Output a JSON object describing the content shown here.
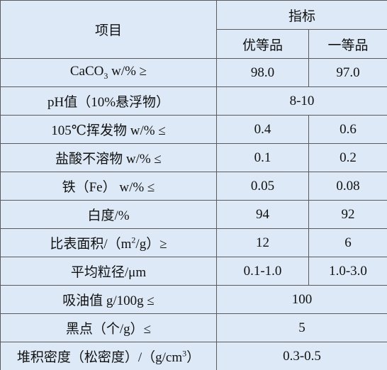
{
  "header": {
    "item": "项目",
    "spec": "指标",
    "grade1": "优等品",
    "grade2": "一等品"
  },
  "rows": [
    [
      [
        "CaCO",
        "3",
        " w/% ≥"
      ],
      "98.0",
      "97.0"
    ],
    [
      "pH值（10%悬浮物）",
      "8-10"
    ],
    [
      "105℃挥发物 w/% ≤",
      "0.4",
      "0.6"
    ],
    [
      "盐酸不溶物 w/% ≤",
      "0.1",
      "0.2"
    ],
    [
      "铁（Fe） w/% ≤",
      "0.05",
      "0.08"
    ],
    [
      "白度/%",
      "94",
      "92"
    ],
    [
      [
        "比表面积/（m",
        "2",
        "/g）≥"
      ],
      "12",
      "6"
    ],
    [
      "平均粒径/μm",
      "0.1-1.0",
      "1.0-3.0"
    ],
    [
      "吸油值 g/100g ≤",
      "100"
    ],
    [
      "黑点（个/g）≤",
      "5"
    ],
    [
      [
        "堆积密度（松密度）/（g/cm",
        "3",
        "）"
      ],
      "0.3-0.5"
    ]
  ]
}
